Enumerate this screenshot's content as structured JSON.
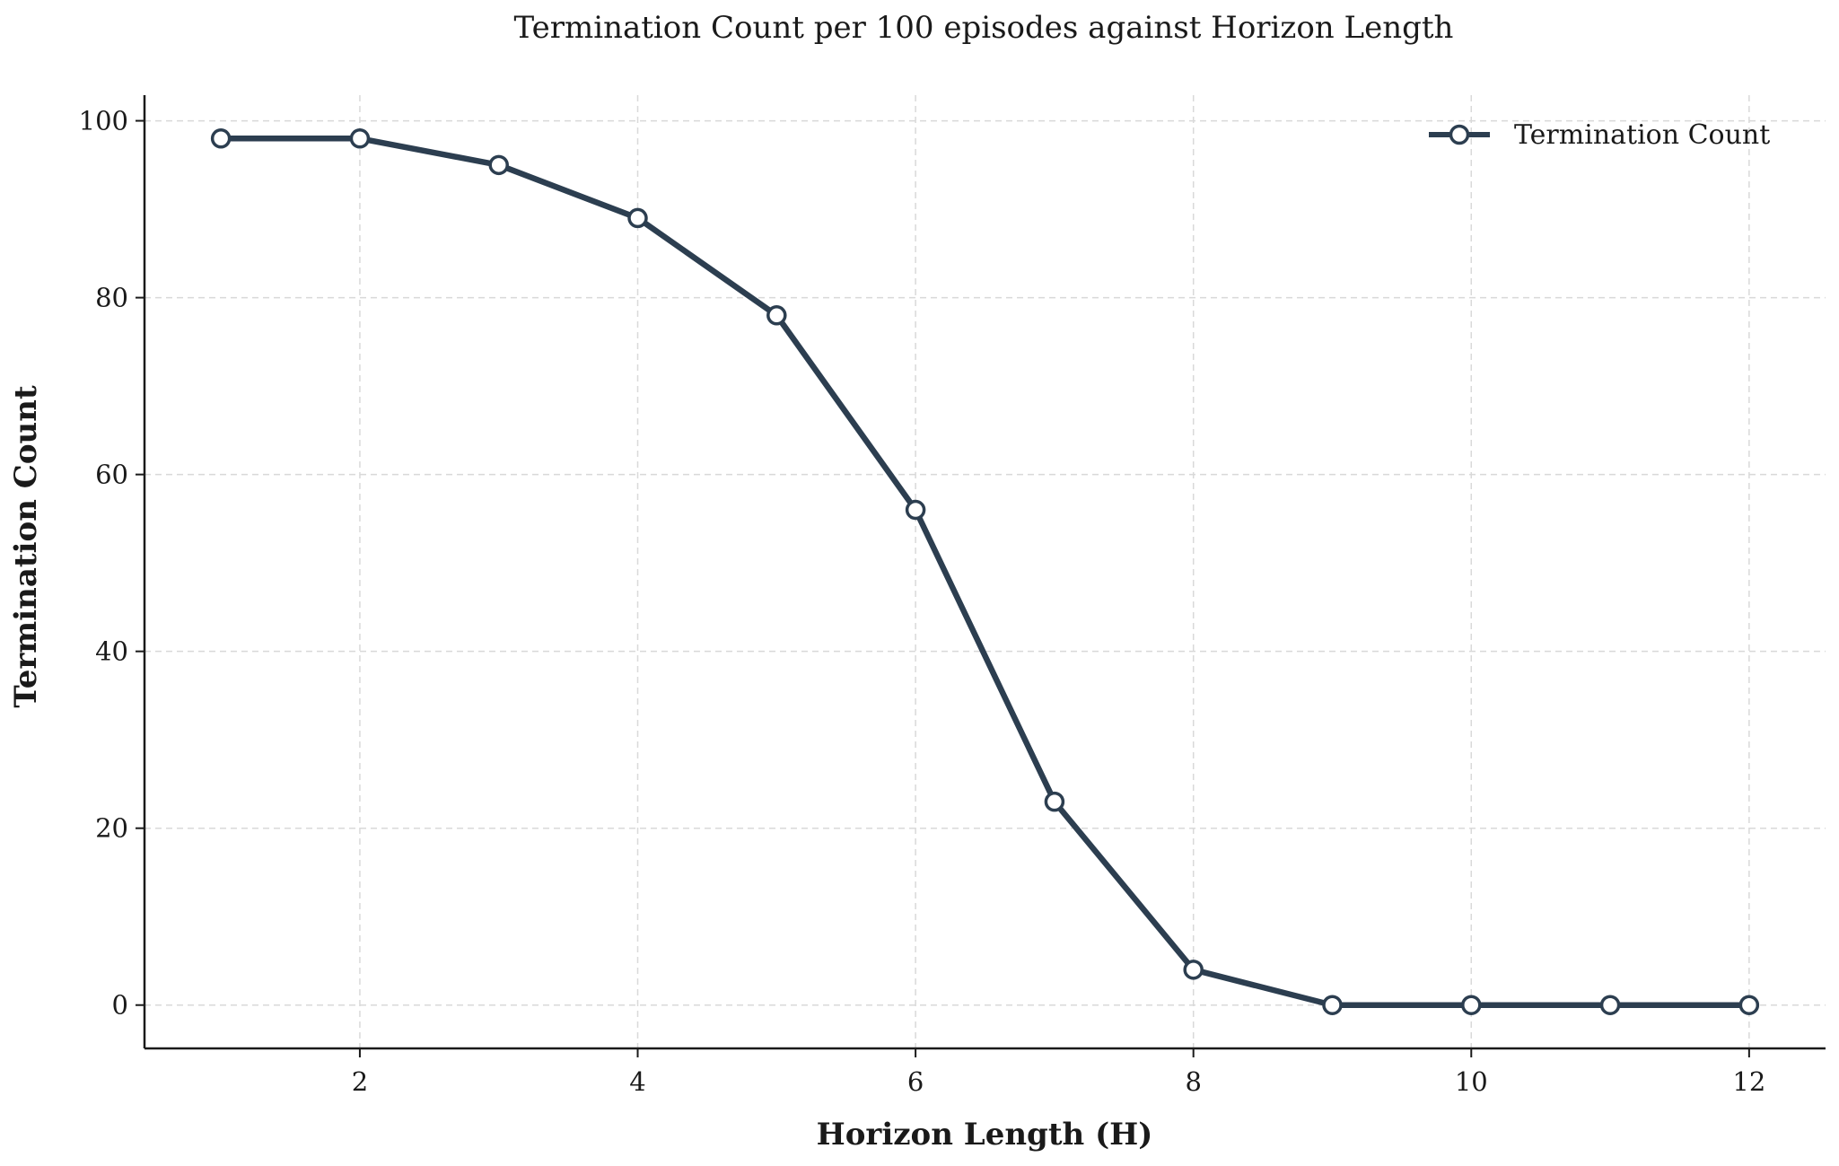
{
  "chart_data": {
    "type": "line",
    "title": "Termination Count per 100 episodes against Horizon Length",
    "xlabel": "Horizon Length (H)",
    "ylabel": "Termination Count",
    "xlim": [
      0.45,
      12.55
    ],
    "ylim": [
      -4.9,
      102.9
    ],
    "xticks": [
      2,
      4,
      6,
      8,
      10,
      12
    ],
    "yticks": [
      0,
      20,
      40,
      60,
      80,
      100
    ],
    "grid": true,
    "legend_position": "upper right",
    "series": [
      {
        "name": "Termination Count",
        "color": "#2c3e50",
        "marker": "circle-open",
        "x": [
          1,
          2,
          3,
          4,
          5,
          6,
          7,
          8,
          9,
          10,
          11,
          12
        ],
        "y": [
          98,
          98,
          95,
          89,
          78,
          56,
          23,
          4,
          0,
          0,
          0,
          0
        ]
      }
    ]
  }
}
